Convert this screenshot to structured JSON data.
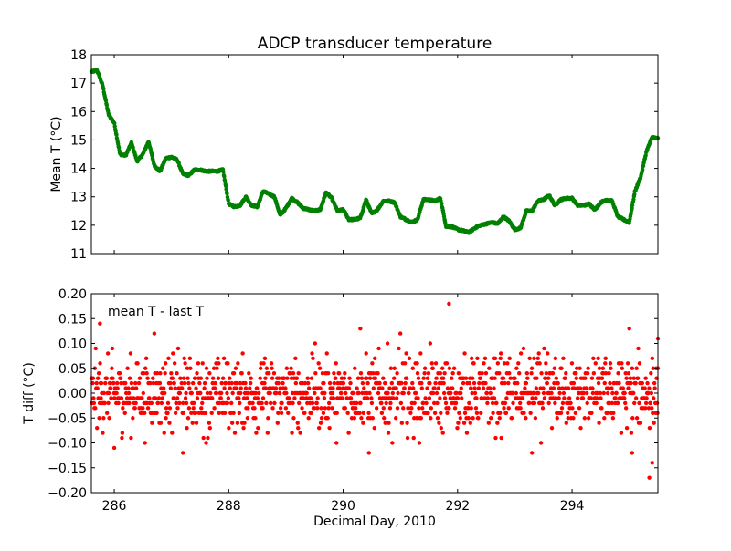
{
  "figure": {
    "title": "ADCP transducer temperature"
  },
  "chart_data": [
    {
      "type": "scatter",
      "title": "ADCP transducer temperature",
      "xlabel": "",
      "ylabel": "Mean T (°C)",
      "xlim": [
        285.6,
        295.5
      ],
      "ylim": [
        11,
        18
      ],
      "yticks": [
        "11",
        "12",
        "13",
        "14",
        "15",
        "16",
        "17",
        "18"
      ],
      "xticks": [
        "286",
        "288",
        "290",
        "292",
        "294"
      ],
      "grid": false,
      "color": "#008000",
      "x": [
        285.6,
        285.7,
        285.8,
        285.9,
        286.0,
        286.1,
        286.2,
        286.3,
        286.4,
        286.5,
        286.6,
        286.7,
        286.8,
        286.9,
        287.0,
        287.1,
        287.2,
        287.3,
        287.4,
        287.5,
        287.6,
        287.7,
        287.8,
        287.9,
        288.0,
        288.1,
        288.2,
        288.3,
        288.4,
        288.5,
        288.6,
        288.7,
        288.8,
        288.9,
        289.0,
        289.1,
        289.2,
        289.3,
        289.4,
        289.5,
        289.6,
        289.7,
        289.8,
        289.9,
        290.0,
        290.1,
        290.2,
        290.3,
        290.4,
        290.5,
        290.6,
        290.7,
        290.8,
        290.9,
        291.0,
        291.1,
        291.2,
        291.3,
        291.4,
        291.5,
        291.6,
        291.7,
        291.8,
        291.9,
        292.0,
        292.1,
        292.2,
        292.3,
        292.4,
        292.5,
        292.6,
        292.7,
        292.8,
        292.9,
        293.0,
        293.1,
        293.2,
        293.3,
        293.4,
        293.5,
        293.6,
        293.7,
        293.8,
        293.9,
        294.0,
        294.1,
        294.2,
        294.3,
        294.4,
        294.5,
        294.6,
        294.7,
        294.8,
        294.9,
        295.0,
        295.1,
        295.2,
        295.3,
        295.4,
        295.5
      ],
      "y": [
        17.4,
        17.45,
        16.9,
        15.9,
        15.6,
        14.5,
        14.45,
        14.9,
        14.25,
        14.5,
        14.95,
        14.1,
        13.9,
        14.35,
        14.4,
        14.3,
        13.8,
        13.75,
        13.95,
        13.95,
        13.9,
        13.9,
        13.9,
        13.95,
        12.75,
        12.65,
        12.7,
        13.0,
        12.7,
        12.65,
        13.2,
        13.1,
        13.0,
        12.35,
        12.6,
        12.95,
        12.8,
        12.6,
        12.55,
        12.5,
        12.55,
        13.15,
        12.95,
        12.5,
        12.55,
        12.2,
        12.2,
        12.25,
        12.9,
        12.4,
        12.55,
        12.85,
        12.85,
        12.8,
        12.3,
        12.2,
        12.1,
        12.2,
        12.9,
        12.9,
        12.85,
        12.95,
        11.95,
        11.95,
        11.85,
        11.8,
        11.75,
        11.9,
        12.0,
        12.05,
        12.1,
        12.05,
        12.3,
        12.15,
        11.85,
        11.9,
        12.5,
        12.5,
        12.85,
        12.9,
        13.05,
        12.7,
        12.9,
        12.95,
        12.95,
        12.7,
        12.7,
        12.75,
        12.55,
        12.8,
        12.9,
        12.85,
        12.3,
        12.2,
        12.1,
        13.2,
        13.7,
        14.6,
        15.1,
        15.05
      ]
    },
    {
      "type": "scatter",
      "title": "",
      "annotation": "mean T - last T",
      "xlabel": "Decimal Day, 2010",
      "ylabel": "T diff (°C)",
      "xlim": [
        285.6,
        295.5
      ],
      "ylim": [
        -0.2,
        0.2
      ],
      "yticks": [
        "−0.20",
        "−0.15",
        "−0.10",
        "−0.05",
        "0.00",
        "0.05",
        "0.10",
        "0.15",
        "0.20"
      ],
      "xticks": [
        "286",
        "288",
        "290",
        "292",
        "294"
      ],
      "grid": false,
      "color": "#ff0000",
      "outliers": [
        {
          "x": 285.75,
          "y": 0.14
        },
        {
          "x": 286.7,
          "y": 0.12
        },
        {
          "x": 290.3,
          "y": 0.13
        },
        {
          "x": 291.0,
          "y": 0.12
        },
        {
          "x": 291.85,
          "y": 0.18
        },
        {
          "x": 295.0,
          "y": 0.13
        },
        {
          "x": 295.5,
          "y": 0.11
        },
        {
          "x": 286.0,
          "y": -0.11
        },
        {
          "x": 287.2,
          "y": -0.12
        },
        {
          "x": 290.45,
          "y": -0.12
        },
        {
          "x": 293.3,
          "y": -0.12
        },
        {
          "x": 295.05,
          "y": -0.12
        },
        {
          "x": 295.4,
          "y": -0.14
        },
        {
          "x": 295.35,
          "y": -0.17
        }
      ],
      "noise_levels": [
        -0.1,
        -0.09,
        -0.08,
        -0.07,
        -0.06,
        -0.05,
        -0.04,
        -0.03,
        -0.02,
        -0.01,
        0.0,
        0.01,
        0.02,
        0.03,
        0.04,
        0.05,
        0.06,
        0.07,
        0.08,
        0.09,
        0.1
      ],
      "noise_weights": [
        1,
        2,
        3,
        5,
        8,
        12,
        18,
        24,
        30,
        34,
        36,
        34,
        30,
        24,
        18,
        12,
        8,
        5,
        3,
        2,
        1
      ]
    }
  ]
}
